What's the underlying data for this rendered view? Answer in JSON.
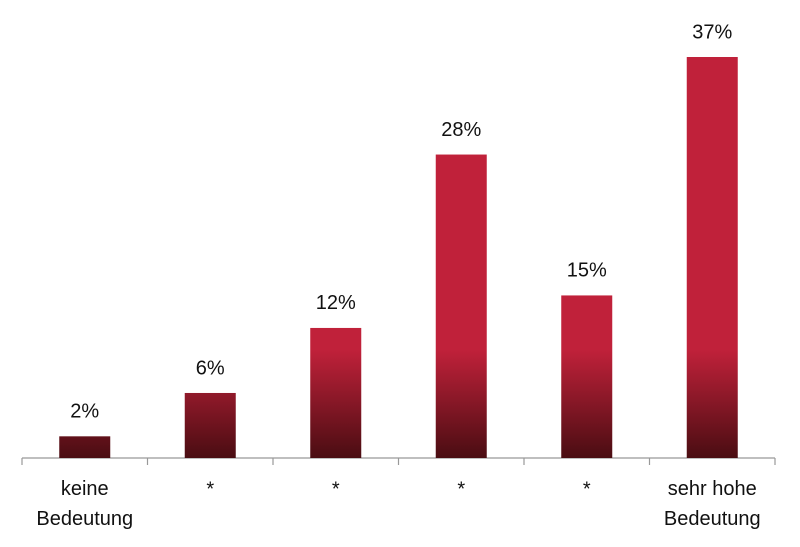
{
  "chart_data": {
    "type": "bar",
    "categories": [
      "keine\nBedeutung",
      "*",
      "*",
      "*",
      "*",
      "sehr hohe\nBedeutung"
    ],
    "values": [
      2,
      6,
      12,
      28,
      15,
      37
    ],
    "value_labels": [
      "2%",
      "6%",
      "12%",
      "28%",
      "15%",
      "37%"
    ],
    "color": "#c0213a"
  }
}
